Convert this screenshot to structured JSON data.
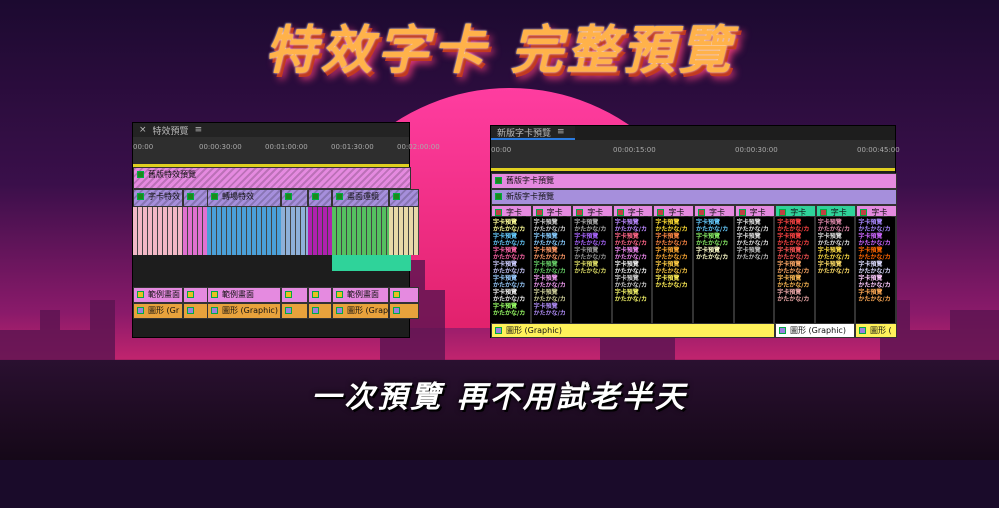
{
  "banner": {
    "title": "特效字卡 完整預覽",
    "subtitle": "一次預覽 再不用試老半天"
  },
  "colors": {
    "accent": "#ffb24a",
    "pink": "#e58ae0",
    "purple": "#a68fdc",
    "orange": "#e8a23c",
    "yellow": "#fff25a",
    "green": "#2fd39a"
  },
  "left_panel": {
    "close_icon": "×",
    "title": "特效預覽",
    "menu_icon": "≡",
    "ruler": [
      "00:00",
      "00:00:30:00",
      "00:01:00:00",
      "00:01:30:00",
      "00:02:00:00"
    ],
    "track1": "舊版特效預覽",
    "track2": [
      "字卡特效",
      "",
      "轉場特效",
      "",
      "",
      "畫面運鏡",
      ""
    ],
    "track_sample": [
      "範例畫面",
      "",
      "範例畫面",
      "",
      "",
      "範例畫面",
      ""
    ],
    "track_graphic": [
      "圖形 (Gr",
      "",
      "圖形 (Graphic)",
      "",
      "",
      "圖形 (Graphi",
      ""
    ]
  },
  "right_panel": {
    "title": "新版字卡預覽",
    "menu_icon": "≡",
    "ruler": [
      "00:00",
      "00:00:15:00",
      "00:00:30:00",
      "00:00:45:00"
    ],
    "track1": "舊版字卡預覽",
    "track2": "新版字卡預覽",
    "column_label": "字卡_",
    "card_line1": "字卡預覽",
    "card_line2": "かたかな/カ",
    "graphics": [
      "圖形 (Graphic)",
      "圖形 (Graphic)",
      "圖形 ("
    ]
  }
}
